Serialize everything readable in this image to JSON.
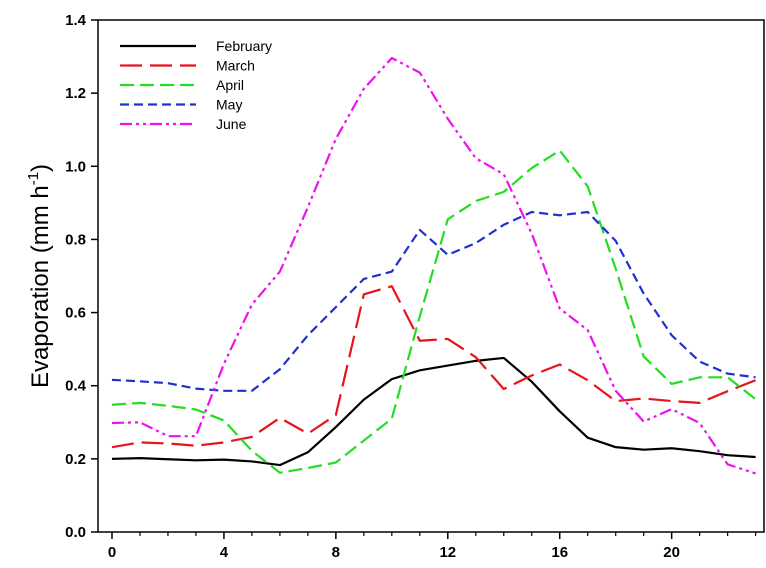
{
  "chart_data": {
    "type": "line",
    "xlabel": "",
    "ylabel": {
      "text": "Evaporation (mm h",
      "superscript": "-1",
      "suffix": ")"
    },
    "xlim": [
      -0.5,
      23.3
    ],
    "ylim": [
      0,
      1.4
    ],
    "x_ticks": [
      0,
      4,
      8,
      12,
      16,
      20
    ],
    "y_ticks": [
      0.0,
      0.2,
      0.4,
      0.6,
      0.8,
      1.0,
      1.2,
      1.4
    ],
    "y_tick_labels": [
      "0.0",
      "0.2",
      "0.4",
      "0.6",
      "0.8",
      "1.0",
      "1.2",
      "1.4"
    ],
    "x_minor_ticks": [
      1,
      2,
      3,
      5,
      6,
      7,
      9,
      10,
      11,
      13,
      14,
      15,
      17,
      18,
      19,
      21,
      22,
      23
    ],
    "grid": false,
    "legend_position": "top-left",
    "x": [
      0,
      1,
      2,
      3,
      4,
      5,
      6,
      7,
      8,
      9,
      10,
      11,
      12,
      13,
      14,
      15,
      16,
      17,
      18,
      19,
      20,
      21,
      22,
      23
    ],
    "series": [
      {
        "name": "February",
        "color": "#000000",
        "dash": "solid",
        "values": [
          0.2,
          0.202,
          0.199,
          0.196,
          0.198,
          0.193,
          0.183,
          0.218,
          0.287,
          0.362,
          0.418,
          0.442,
          0.455,
          0.468,
          0.476,
          0.411,
          0.33,
          0.258,
          0.232,
          0.225,
          0.229,
          0.221,
          0.21,
          0.205
        ]
      },
      {
        "name": "March",
        "color": "#e8131b",
        "dash": "long",
        "values": [
          0.232,
          0.245,
          0.242,
          0.236,
          0.245,
          0.26,
          0.312,
          0.269,
          0.32,
          0.65,
          0.672,
          0.523,
          0.528,
          0.478,
          0.391,
          0.428,
          0.458,
          0.415,
          0.358,
          0.365,
          0.358,
          0.353,
          0.385,
          0.415
        ]
      },
      {
        "name": "April",
        "color": "#22dd22",
        "dash": "medium",
        "values": [
          0.348,
          0.353,
          0.345,
          0.335,
          0.305,
          0.222,
          0.162,
          0.175,
          0.19,
          0.25,
          0.31,
          0.59,
          0.855,
          0.905,
          0.93,
          0.995,
          1.043,
          0.945,
          0.72,
          0.48,
          0.405,
          0.423,
          0.423,
          0.363
        ]
      },
      {
        "name": "May",
        "color": "#1f30d0",
        "dash": "short",
        "values": [
          0.416,
          0.412,
          0.407,
          0.392,
          0.386,
          0.386,
          0.445,
          0.538,
          0.615,
          0.692,
          0.712,
          0.826,
          0.758,
          0.79,
          0.84,
          0.875,
          0.866,
          0.875,
          0.796,
          0.652,
          0.538,
          0.466,
          0.433,
          0.423
        ]
      },
      {
        "name": "June",
        "color": "#ee11ee",
        "dash": "dashdotdot",
        "values": [
          0.298,
          0.3,
          0.262,
          0.262,
          0.46,
          0.622,
          0.712,
          0.888,
          1.075,
          1.212,
          1.296,
          1.256,
          1.13,
          1.022,
          0.978,
          0.816,
          0.611,
          0.552,
          0.386,
          0.302,
          0.336,
          0.298,
          0.185,
          0.16
        ]
      }
    ]
  }
}
